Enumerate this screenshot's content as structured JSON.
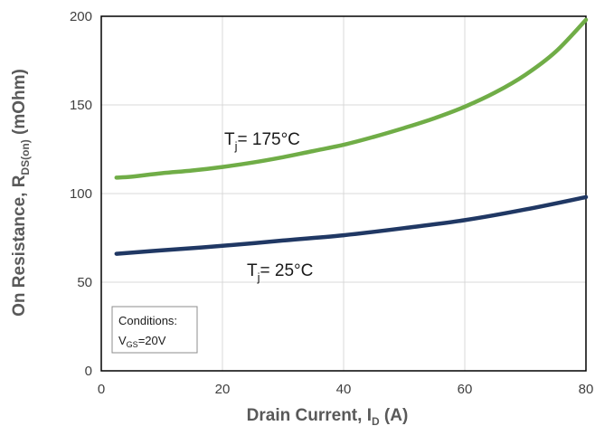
{
  "chart_data": {
    "type": "line",
    "xlabel": {
      "main": "Drain Current, I",
      "sub": "D",
      "tail": " (A)"
    },
    "ylabel": {
      "main": "On Resistance, R",
      "sub": "DS(on)",
      "tail": " (mOhm)"
    },
    "xlim": [
      0,
      80
    ],
    "ylim": [
      0,
      200
    ],
    "xticks": [
      0,
      20,
      40,
      60,
      80
    ],
    "yticks": [
      0,
      50,
      100,
      150,
      200
    ],
    "grid": true,
    "series": [
      {
        "label_main": "T",
        "label_sub": "j",
        "label_tail": "= 175°C",
        "color": "#70ad47",
        "x": [
          2.5,
          5,
          10,
          15,
          20,
          25,
          30,
          35,
          40,
          45,
          50,
          55,
          60,
          65,
          70,
          75,
          80
        ],
        "y": [
          109,
          109.5,
          111.5,
          113,
          115,
          117.5,
          120.5,
          124,
          127.5,
          132,
          137,
          142.5,
          149,
          157,
          167,
          180,
          198
        ]
      },
      {
        "label_main": "T",
        "label_sub": "j",
        "label_tail": "= 25°C",
        "color": "#203864",
        "x": [
          2.5,
          10,
          20,
          30,
          40,
          50,
          60,
          70,
          80
        ],
        "y": [
          66,
          68,
          70.5,
          73.5,
          76.5,
          80.5,
          85,
          91,
          98
        ]
      }
    ],
    "annotations": {
      "conditions_title": "Conditions:",
      "conditions_main": "V",
      "conditions_sub": "GS",
      "conditions_tail": "=20V"
    }
  }
}
